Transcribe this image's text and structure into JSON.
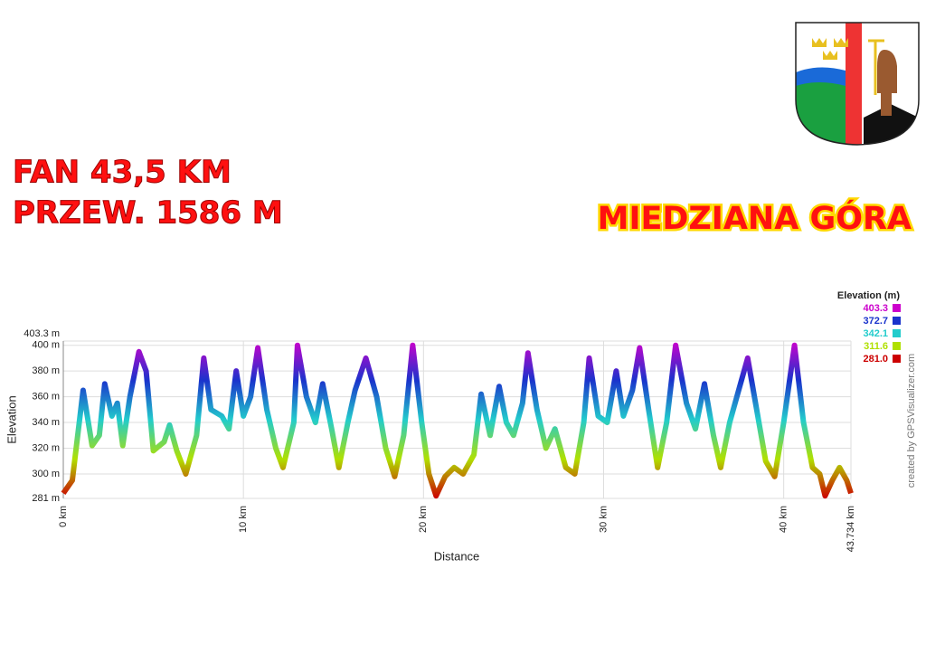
{
  "heading": {
    "line1": "FAN 43,5 KM",
    "line2": "PRZEW. 1586 M",
    "place": "MIEDZIANA GÓRA"
  },
  "credit": "created by GPSVisualizer.com",
  "chart_data": {
    "type": "line",
    "xlabel": "Distance",
    "ylabel": "Elevation",
    "xlim": [
      0,
      43.734
    ],
    "ylim": [
      281,
      403.3
    ],
    "xticks": [
      {
        "value": 0,
        "label": "0 km"
      },
      {
        "value": 10,
        "label": "10 km"
      },
      {
        "value": 20,
        "label": "20 km"
      },
      {
        "value": 30,
        "label": "30 km"
      },
      {
        "value": 40,
        "label": "40 km"
      },
      {
        "value": 43.734,
        "label": "43.734 km"
      }
    ],
    "yticks": [
      {
        "value": 281,
        "label": "281 m"
      },
      {
        "value": 300,
        "label": "300 m"
      },
      {
        "value": 320,
        "label": "320 m"
      },
      {
        "value": 340,
        "label": "340 m"
      },
      {
        "value": 360,
        "label": "360 m"
      },
      {
        "value": 380,
        "label": "380 m"
      },
      {
        "value": 400,
        "label": "400 m"
      },
      {
        "value": 403.3,
        "label": "403.3 m"
      }
    ],
    "grid": true,
    "legend": {
      "title": "Elevation (m)",
      "items": [
        {
          "value": 403.3,
          "color": "#cc00cc"
        },
        {
          "value": 372.7,
          "color": "#1a33cc"
        },
        {
          "value": 342.1,
          "color": "#22cccc"
        },
        {
          "value": 311.6,
          "color": "#b0e000"
        },
        {
          "value": 281,
          "label": "281.0",
          "color": "#cc0000"
        }
      ]
    },
    "x": [
      0,
      0.5,
      1.1,
      1.6,
      2.0,
      2.3,
      2.7,
      3.0,
      3.3,
      3.7,
      4.2,
      4.6,
      5.0,
      5.6,
      5.9,
      6.3,
      6.8,
      7.4,
      7.8,
      8.2,
      8.8,
      9.2,
      9.6,
      10.0,
      10.4,
      10.8,
      11.3,
      11.8,
      12.2,
      12.8,
      13.0,
      13.5,
      14.0,
      14.4,
      14.9,
      15.3,
      15.8,
      16.2,
      16.8,
      17.4,
      17.9,
      18.4,
      18.9,
      19.4,
      19.9,
      20.3,
      20.7,
      21.2,
      21.7,
      22.2,
      22.8,
      23.2,
      23.7,
      24.2,
      24.6,
      25.0,
      25.5,
      25.8,
      26.3,
      26.8,
      27.3,
      27.9,
      28.4,
      28.9,
      29.2,
      29.7,
      30.2,
      30.7,
      31.1,
      31.6,
      32.0,
      32.5,
      33.0,
      33.5,
      34.0,
      34.6,
      35.1,
      35.6,
      36.1,
      36.5,
      37.0,
      37.5,
      38.0,
      38.5,
      39.0,
      39.5,
      40.0,
      40.6,
      41.1,
      41.6,
      42.0,
      42.3,
      42.7,
      43.1,
      43.5,
      43.734
    ],
    "series": [
      {
        "name": "Elevation",
        "values": [
          285,
          295,
          365,
          322,
          330,
          370,
          345,
          355,
          322,
          360,
          395,
          380,
          318,
          325,
          338,
          318,
          300,
          330,
          390,
          350,
          345,
          335,
          380,
          345,
          360,
          398,
          350,
          320,
          305,
          340,
          400,
          360,
          340,
          370,
          335,
          305,
          340,
          365,
          390,
          360,
          320,
          298,
          330,
          400,
          340,
          300,
          283,
          298,
          305,
          300,
          315,
          362,
          330,
          368,
          340,
          330,
          355,
          394,
          350,
          320,
          335,
          305,
          300,
          340,
          390,
          345,
          340,
          380,
          345,
          365,
          398,
          350,
          305,
          340,
          400,
          355,
          335,
          370,
          330,
          305,
          340,
          365,
          390,
          350,
          310,
          298,
          340,
          400,
          340,
          305,
          300,
          283,
          295,
          305,
          295,
          285
        ]
      }
    ]
  }
}
